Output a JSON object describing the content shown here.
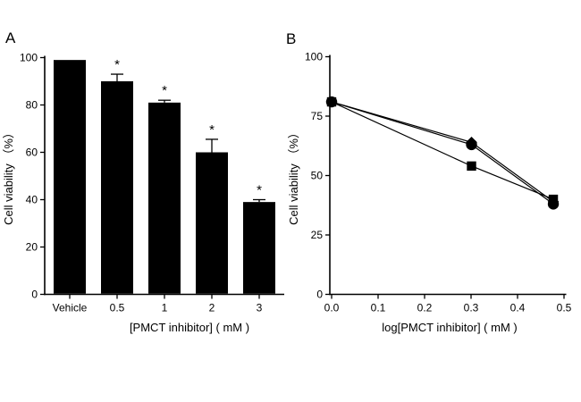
{
  "figure": {
    "background": "#ffffff",
    "ink_color": "#000000",
    "panels": [
      {
        "label": "A"
      },
      {
        "label": "B"
      }
    ]
  },
  "chart_data": [
    {
      "type": "bar",
      "panel": "A",
      "title": "",
      "categories": [
        "Vehicle",
        "0.5",
        "1",
        "2",
        "3"
      ],
      "values": [
        99,
        90,
        81,
        60,
        39
      ],
      "errors_up": [
        0,
        3,
        1,
        5.5,
        1
      ],
      "significance": [
        "",
        "*",
        "*",
        "*",
        "*"
      ],
      "xlabel": "[PMCT inhibitor] ( mM )",
      "ylabel": "Cell viability （%）",
      "ylim": [
        0,
        100
      ],
      "yticks": [
        0,
        20,
        40,
        60,
        80,
        100
      ],
      "bar_color": "#000000",
      "grid": false,
      "legend": "none"
    },
    {
      "type": "line",
      "panel": "B",
      "title": "",
      "x": [
        0,
        0.301,
        0.477
      ],
      "series": [
        {
          "name": "diamond-series",
          "marker": "diamond",
          "values": [
            81,
            64,
            39
          ]
        },
        {
          "name": "square-series",
          "marker": "square",
          "values": [
            81,
            54,
            40
          ]
        },
        {
          "name": "circle-series",
          "marker": "circle",
          "values": [
            81,
            63,
            38
          ]
        }
      ],
      "xlabel": "log[PMCT inhibitor] ( mM )",
      "ylabel": "Cell viability （%）",
      "xlim": [
        0,
        0.5
      ],
      "ylim": [
        0,
        100
      ],
      "xticks": [
        0,
        0.1,
        0.2,
        0.3,
        0.4,
        0.5
      ],
      "yticks": [
        0,
        25,
        50,
        75,
        100
      ],
      "line_color": "#000000",
      "grid": false,
      "legend": "none"
    }
  ]
}
